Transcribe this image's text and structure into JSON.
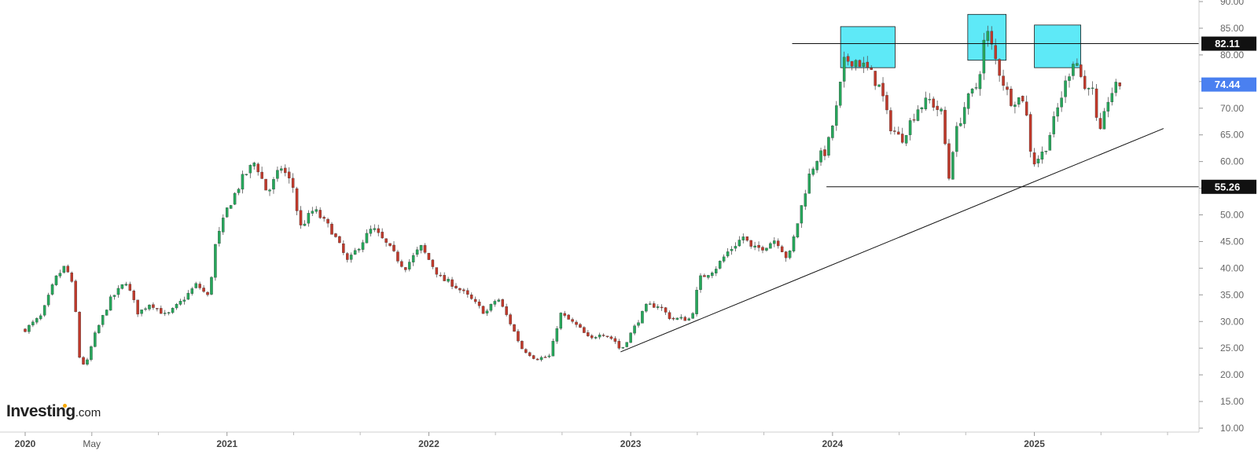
{
  "brand": {
    "name": "Investing",
    "domain": ".com",
    "accent": "#f7a800"
  },
  "chart_data": {
    "type": "candlestick",
    "title": "",
    "xlabel": "",
    "ylabel": "",
    "ylim": [
      10,
      90
    ],
    "y_ticks": [
      10,
      15,
      20,
      25,
      30,
      35,
      40,
      45,
      50,
      55,
      60,
      65,
      70,
      75,
      80,
      85,
      90
    ],
    "x_range": [
      2020.0,
      2025.66
    ],
    "x_ticks": [
      {
        "x": 2020.0,
        "label": "2020",
        "major": true
      },
      {
        "x": 2020.33,
        "label": "May",
        "major": false
      },
      {
        "x": 2021.0,
        "label": "2021",
        "major": true
      },
      {
        "x": 2022.0,
        "label": "2022",
        "major": true
      },
      {
        "x": 2023.0,
        "label": "2023",
        "major": true
      },
      {
        "x": 2024.0,
        "label": "2024",
        "major": true
      },
      {
        "x": 2025.0,
        "label": "2025",
        "major": true
      }
    ],
    "colors": {
      "up": "#26a65b",
      "down": "#c0392b",
      "highlight": "#5ee9f7",
      "last": "#4a80f0",
      "level": "#111111"
    },
    "levels": [
      {
        "label": "82.11",
        "price": 82.11,
        "from": 2023.8
      },
      {
        "label": "55.26",
        "price": 55.26,
        "from": 2023.97
      }
    ],
    "last_price": {
      "label": "74.44",
      "price": 74.44
    },
    "trendline": {
      "from": [
        2022.95,
        24.3
      ],
      "to": [
        2025.64,
        66.2
      ]
    },
    "highlight_boxes": [
      {
        "x0": 2024.04,
        "x1": 2024.31,
        "y0": 77.6,
        "y1": 85.3
      },
      {
        "x0": 2024.67,
        "x1": 2024.86,
        "y0": 79.0,
        "y1": 87.6
      },
      {
        "x0": 2025.0,
        "x1": 2025.23,
        "y0": 77.6,
        "y1": 85.6
      }
    ],
    "anchors": [
      [
        2020.0,
        28.5
      ],
      [
        2020.08,
        31
      ],
      [
        2020.15,
        38
      ],
      [
        2020.2,
        40.5
      ],
      [
        2020.24,
        36
      ],
      [
        2020.27,
        23
      ],
      [
        2020.3,
        21.5
      ],
      [
        2020.34,
        27
      ],
      [
        2020.42,
        34
      ],
      [
        2020.5,
        37.5
      ],
      [
        2020.56,
        31.5
      ],
      [
        2020.62,
        33.5
      ],
      [
        2020.7,
        31
      ],
      [
        2020.78,
        34
      ],
      [
        2020.85,
        37
      ],
      [
        2020.91,
        34.5
      ],
      [
        2020.94,
        44
      ],
      [
        2021.0,
        51
      ],
      [
        2021.08,
        57
      ],
      [
        2021.14,
        60
      ],
      [
        2021.2,
        54
      ],
      [
        2021.27,
        59
      ],
      [
        2021.33,
        55
      ],
      [
        2021.36,
        47.5
      ],
      [
        2021.43,
        51
      ],
      [
        2021.52,
        47
      ],
      [
        2021.6,
        41
      ],
      [
        2021.65,
        44
      ],
      [
        2021.72,
        47.5
      ],
      [
        2021.8,
        44
      ],
      [
        2021.88,
        40
      ],
      [
        2021.96,
        44
      ],
      [
        2022.06,
        38
      ],
      [
        2022.12,
        37
      ],
      [
        2022.2,
        34.5
      ],
      [
        2022.28,
        31.5
      ],
      [
        2022.34,
        34.5
      ],
      [
        2022.4,
        30
      ],
      [
        2022.46,
        25
      ],
      [
        2022.53,
        23
      ],
      [
        2022.6,
        23.5
      ],
      [
        2022.65,
        31.5
      ],
      [
        2022.74,
        29
      ],
      [
        2022.8,
        26.5
      ],
      [
        2022.85,
        28
      ],
      [
        2022.92,
        26.5
      ],
      [
        2022.95,
        24.5
      ],
      [
        2023.02,
        29
      ],
      [
        2023.08,
        33
      ],
      [
        2023.14,
        33
      ],
      [
        2023.2,
        30.5
      ],
      [
        2023.3,
        30.5
      ],
      [
        2023.34,
        38
      ],
      [
        2023.42,
        40
      ],
      [
        2023.48,
        43
      ],
      [
        2023.56,
        46
      ],
      [
        2023.6,
        43.5
      ],
      [
        2023.66,
        44
      ],
      [
        2023.72,
        45.5
      ],
      [
        2023.78,
        41.5
      ],
      [
        2023.83,
        49
      ],
      [
        2023.88,
        57
      ],
      [
        2023.92,
        60.5
      ],
      [
        2023.97,
        62
      ],
      [
        2024.02,
        70
      ],
      [
        2024.06,
        79
      ],
      [
        2024.12,
        79
      ],
      [
        2024.18,
        77
      ],
      [
        2024.24,
        73.5
      ],
      [
        2024.28,
        67
      ],
      [
        2024.34,
        64
      ],
      [
        2024.42,
        70
      ],
      [
        2024.48,
        71.5
      ],
      [
        2024.54,
        69
      ],
      [
        2024.58,
        56
      ],
      [
        2024.6,
        64
      ],
      [
        2024.66,
        71
      ],
      [
        2024.72,
        74.5
      ],
      [
        2024.76,
        85
      ],
      [
        2024.82,
        77.5
      ],
      [
        2024.88,
        71.5
      ],
      [
        2024.95,
        72
      ],
      [
        2024.99,
        59.5
      ],
      [
        2025.05,
        62
      ],
      [
        2025.1,
        68
      ],
      [
        2025.14,
        73
      ],
      [
        2025.2,
        80
      ],
      [
        2025.25,
        73.5
      ],
      [
        2025.28,
        75.5
      ],
      [
        2025.32,
        64
      ],
      [
        2025.37,
        72.5
      ],
      [
        2025.42,
        74.5
      ],
      [
        2025.44,
        74.44
      ]
    ],
    "legend": "none",
    "grid": false
  }
}
